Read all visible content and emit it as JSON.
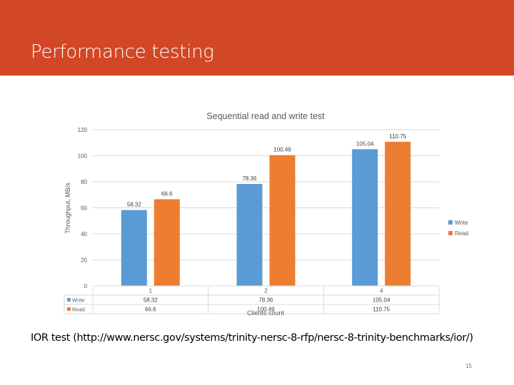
{
  "slide": {
    "title": "Performance testing",
    "caption": "IOR test (http://www.nersc.gov/systems/trinity-nersc-8-rfp/nersc-8-trinity-benchmarks/ior/)",
    "page_number": "15",
    "header_color": "#d24726"
  },
  "chart_data": {
    "type": "bar",
    "title": "Sequential read and write test",
    "xlabel": "Clients count",
    "ylabel": "Throughput, MB/s",
    "categories": [
      "1",
      "2",
      "4"
    ],
    "series": [
      {
        "name": "Write",
        "color": "#5b9bd5",
        "values": [
          58.32,
          78.36,
          105.04
        ],
        "labels": [
          "58.32",
          "78.36",
          "105.04"
        ]
      },
      {
        "name": "Read",
        "color": "#ed7d31",
        "values": [
          66.6,
          100.49,
          110.75
        ],
        "labels": [
          "66.6",
          "100.49",
          "110.75"
        ]
      }
    ],
    "ylim": [
      0,
      120
    ],
    "yticks": [
      "0",
      "20",
      "40",
      "60",
      "80",
      "100",
      "120"
    ],
    "grid": true,
    "legend": "right",
    "data_table": true
  }
}
